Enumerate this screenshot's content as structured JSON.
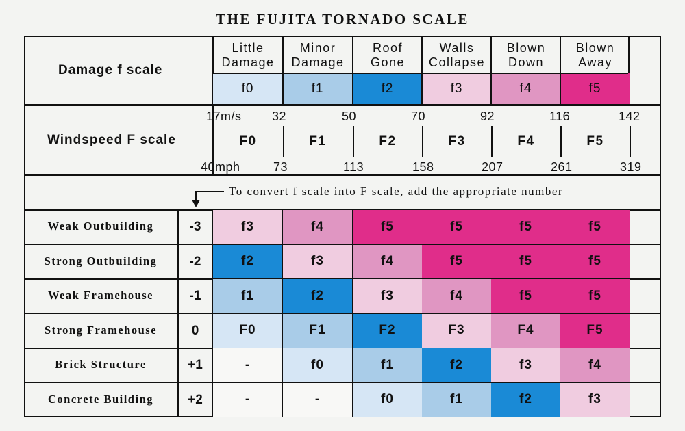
{
  "title": "THE FUJITA TORNADO SCALE",
  "colors": {
    "f0": "#d6e6f5",
    "f1": "#a9cce8",
    "f2": "#1a8ad6",
    "f3": "#f0cce0",
    "f4": "#e096c2",
    "f5": "#e02d8a",
    "none": "#f8f8f6"
  },
  "damage": {
    "label": "Damage  f scale",
    "categories": [
      {
        "line1": "Little",
        "line2": "Damage",
        "code": "f0",
        "color": "f0"
      },
      {
        "line1": "Minor",
        "line2": "Damage",
        "code": "f1",
        "color": "f1"
      },
      {
        "line1": "Roof",
        "line2": "Gone",
        "code": "f2",
        "color": "f2"
      },
      {
        "line1": "Walls",
        "line2": "Collapse",
        "code": "f3",
        "color": "f3"
      },
      {
        "line1": "Blown",
        "line2": "Down",
        "code": "f4",
        "color": "f4"
      },
      {
        "line1": "Blown",
        "line2": "Away",
        "code": "f5",
        "color": "f5"
      }
    ]
  },
  "windspeed": {
    "label": "Windspeed  F scale",
    "ms": [
      "17m/s",
      "32",
      "50",
      "70",
      "92",
      "116",
      "142"
    ],
    "mph": [
      "40mph",
      "73",
      "113",
      "158",
      "207",
      "261",
      "319"
    ],
    "classes": [
      "F0",
      "F1",
      "F2",
      "F3",
      "F4",
      "F5"
    ]
  },
  "note": "To convert f scale into F scale, add the appropriate number",
  "structures": [
    {
      "name": "Weak  Outbuilding",
      "adj": "-3",
      "cells": [
        {
          "t": "f3",
          "c": "f3"
        },
        {
          "t": "f4",
          "c": "f4"
        },
        {
          "t": "f5",
          "c": "f5"
        },
        {
          "t": "f5",
          "c": "f5"
        },
        {
          "t": "f5",
          "c": "f5"
        },
        {
          "t": "f5",
          "c": "f5"
        }
      ]
    },
    {
      "name": "Strong  Outbuilding",
      "adj": "-2",
      "cells": [
        {
          "t": "f2",
          "c": "f2"
        },
        {
          "t": "f3",
          "c": "f3"
        },
        {
          "t": "f4",
          "c": "f4"
        },
        {
          "t": "f5",
          "c": "f5"
        },
        {
          "t": "f5",
          "c": "f5"
        },
        {
          "t": "f5",
          "c": "f5"
        }
      ]
    },
    {
      "name": "Weak  Framehouse",
      "adj": "-1",
      "cells": [
        {
          "t": "f1",
          "c": "f1"
        },
        {
          "t": "f2",
          "c": "f2"
        },
        {
          "t": "f3",
          "c": "f3"
        },
        {
          "t": "f4",
          "c": "f4"
        },
        {
          "t": "f5",
          "c": "f5"
        },
        {
          "t": "f5",
          "c": "f5"
        }
      ]
    },
    {
      "name": "Strong  Framehouse",
      "adj": "0",
      "cells": [
        {
          "t": "F0",
          "c": "f0"
        },
        {
          "t": "F1",
          "c": "f1"
        },
        {
          "t": "F2",
          "c": "f2"
        },
        {
          "t": "F3",
          "c": "f3"
        },
        {
          "t": "F4",
          "c": "f4"
        },
        {
          "t": "F5",
          "c": "f5"
        }
      ]
    },
    {
      "name": "Brick  Structure",
      "adj": "+1",
      "cells": [
        {
          "t": "-",
          "c": "none"
        },
        {
          "t": "f0",
          "c": "f0"
        },
        {
          "t": "f1",
          "c": "f1"
        },
        {
          "t": "f2",
          "c": "f2"
        },
        {
          "t": "f3",
          "c": "f3"
        },
        {
          "t": "f4",
          "c": "f4"
        }
      ]
    },
    {
      "name": "Concrete  Building",
      "adj": "+2",
      "cells": [
        {
          "t": "-",
          "c": "none"
        },
        {
          "t": "-",
          "c": "none"
        },
        {
          "t": "f0",
          "c": "f0"
        },
        {
          "t": "f1",
          "c": "f1"
        },
        {
          "t": "f2",
          "c": "f2"
        },
        {
          "t": "f3",
          "c": "f3"
        }
      ]
    }
  ]
}
